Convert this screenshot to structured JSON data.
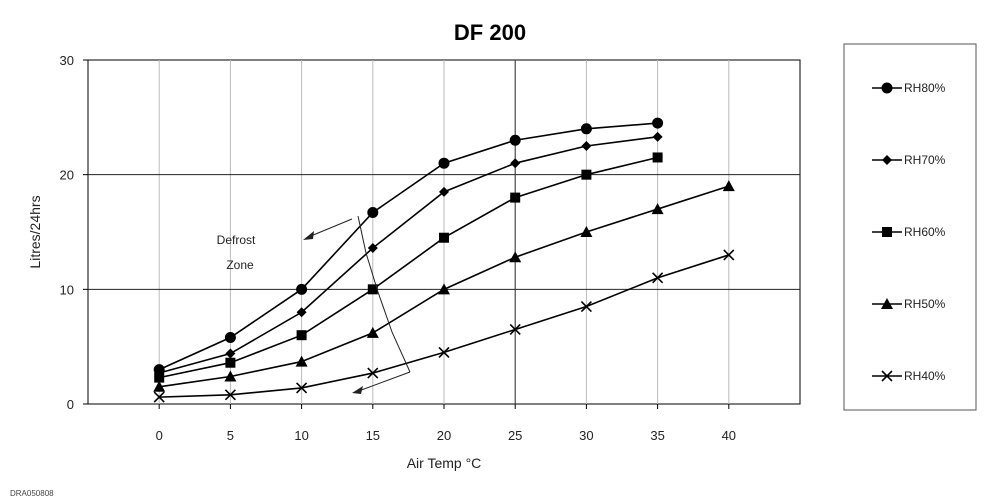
{
  "chart_data": {
    "type": "line",
    "title": "DF  200",
    "xlabel": "Air Temp °C",
    "ylabel": "Litres/24hrs",
    "x_ticks": [
      0,
      5,
      10,
      15,
      20,
      25,
      30,
      35,
      40
    ],
    "y_ticks": [
      0,
      10,
      20,
      30
    ],
    "xlim": [
      -5,
      45
    ],
    "ylim": [
      0,
      30
    ],
    "grid": true,
    "legend_position": "right",
    "series": [
      {
        "name": "RH80%",
        "marker": "circle",
        "x": [
          0,
          5,
          10,
          15,
          20,
          25,
          30,
          35
        ],
        "values": [
          3.0,
          5.8,
          10.0,
          16.7,
          21.0,
          23.0,
          24.0,
          24.5
        ]
      },
      {
        "name": "RH70%",
        "marker": "diamond",
        "x": [
          0,
          5,
          10,
          15,
          20,
          25,
          30,
          35
        ],
        "values": [
          2.7,
          4.4,
          8.0,
          13.6,
          18.5,
          21.0,
          22.5,
          23.3
        ]
      },
      {
        "name": "RH60%",
        "marker": "square",
        "x": [
          0,
          5,
          10,
          15,
          20,
          25,
          30,
          35
        ],
        "values": [
          2.3,
          3.6,
          6.0,
          10.0,
          14.5,
          18.0,
          20.0,
          21.5
        ]
      },
      {
        "name": "RH50%",
        "marker": "triangle",
        "x": [
          0,
          5,
          10,
          15,
          20,
          25,
          30,
          35,
          40
        ],
        "values": [
          1.5,
          2.4,
          3.7,
          6.2,
          10.0,
          12.8,
          15.0,
          17.0,
          19.0
        ]
      },
      {
        "name": "RH40%",
        "marker": "x",
        "x": [
          0,
          5,
          10,
          15,
          20,
          25,
          30,
          35,
          40
        ],
        "values": [
          0.6,
          0.8,
          1.4,
          2.7,
          4.5,
          6.5,
          8.5,
          11.0,
          13.0
        ]
      }
    ],
    "annotations": [
      {
        "text_lines": [
          "Defrost",
          "Zone"
        ]
      }
    ]
  },
  "footnote": "DRA050808"
}
